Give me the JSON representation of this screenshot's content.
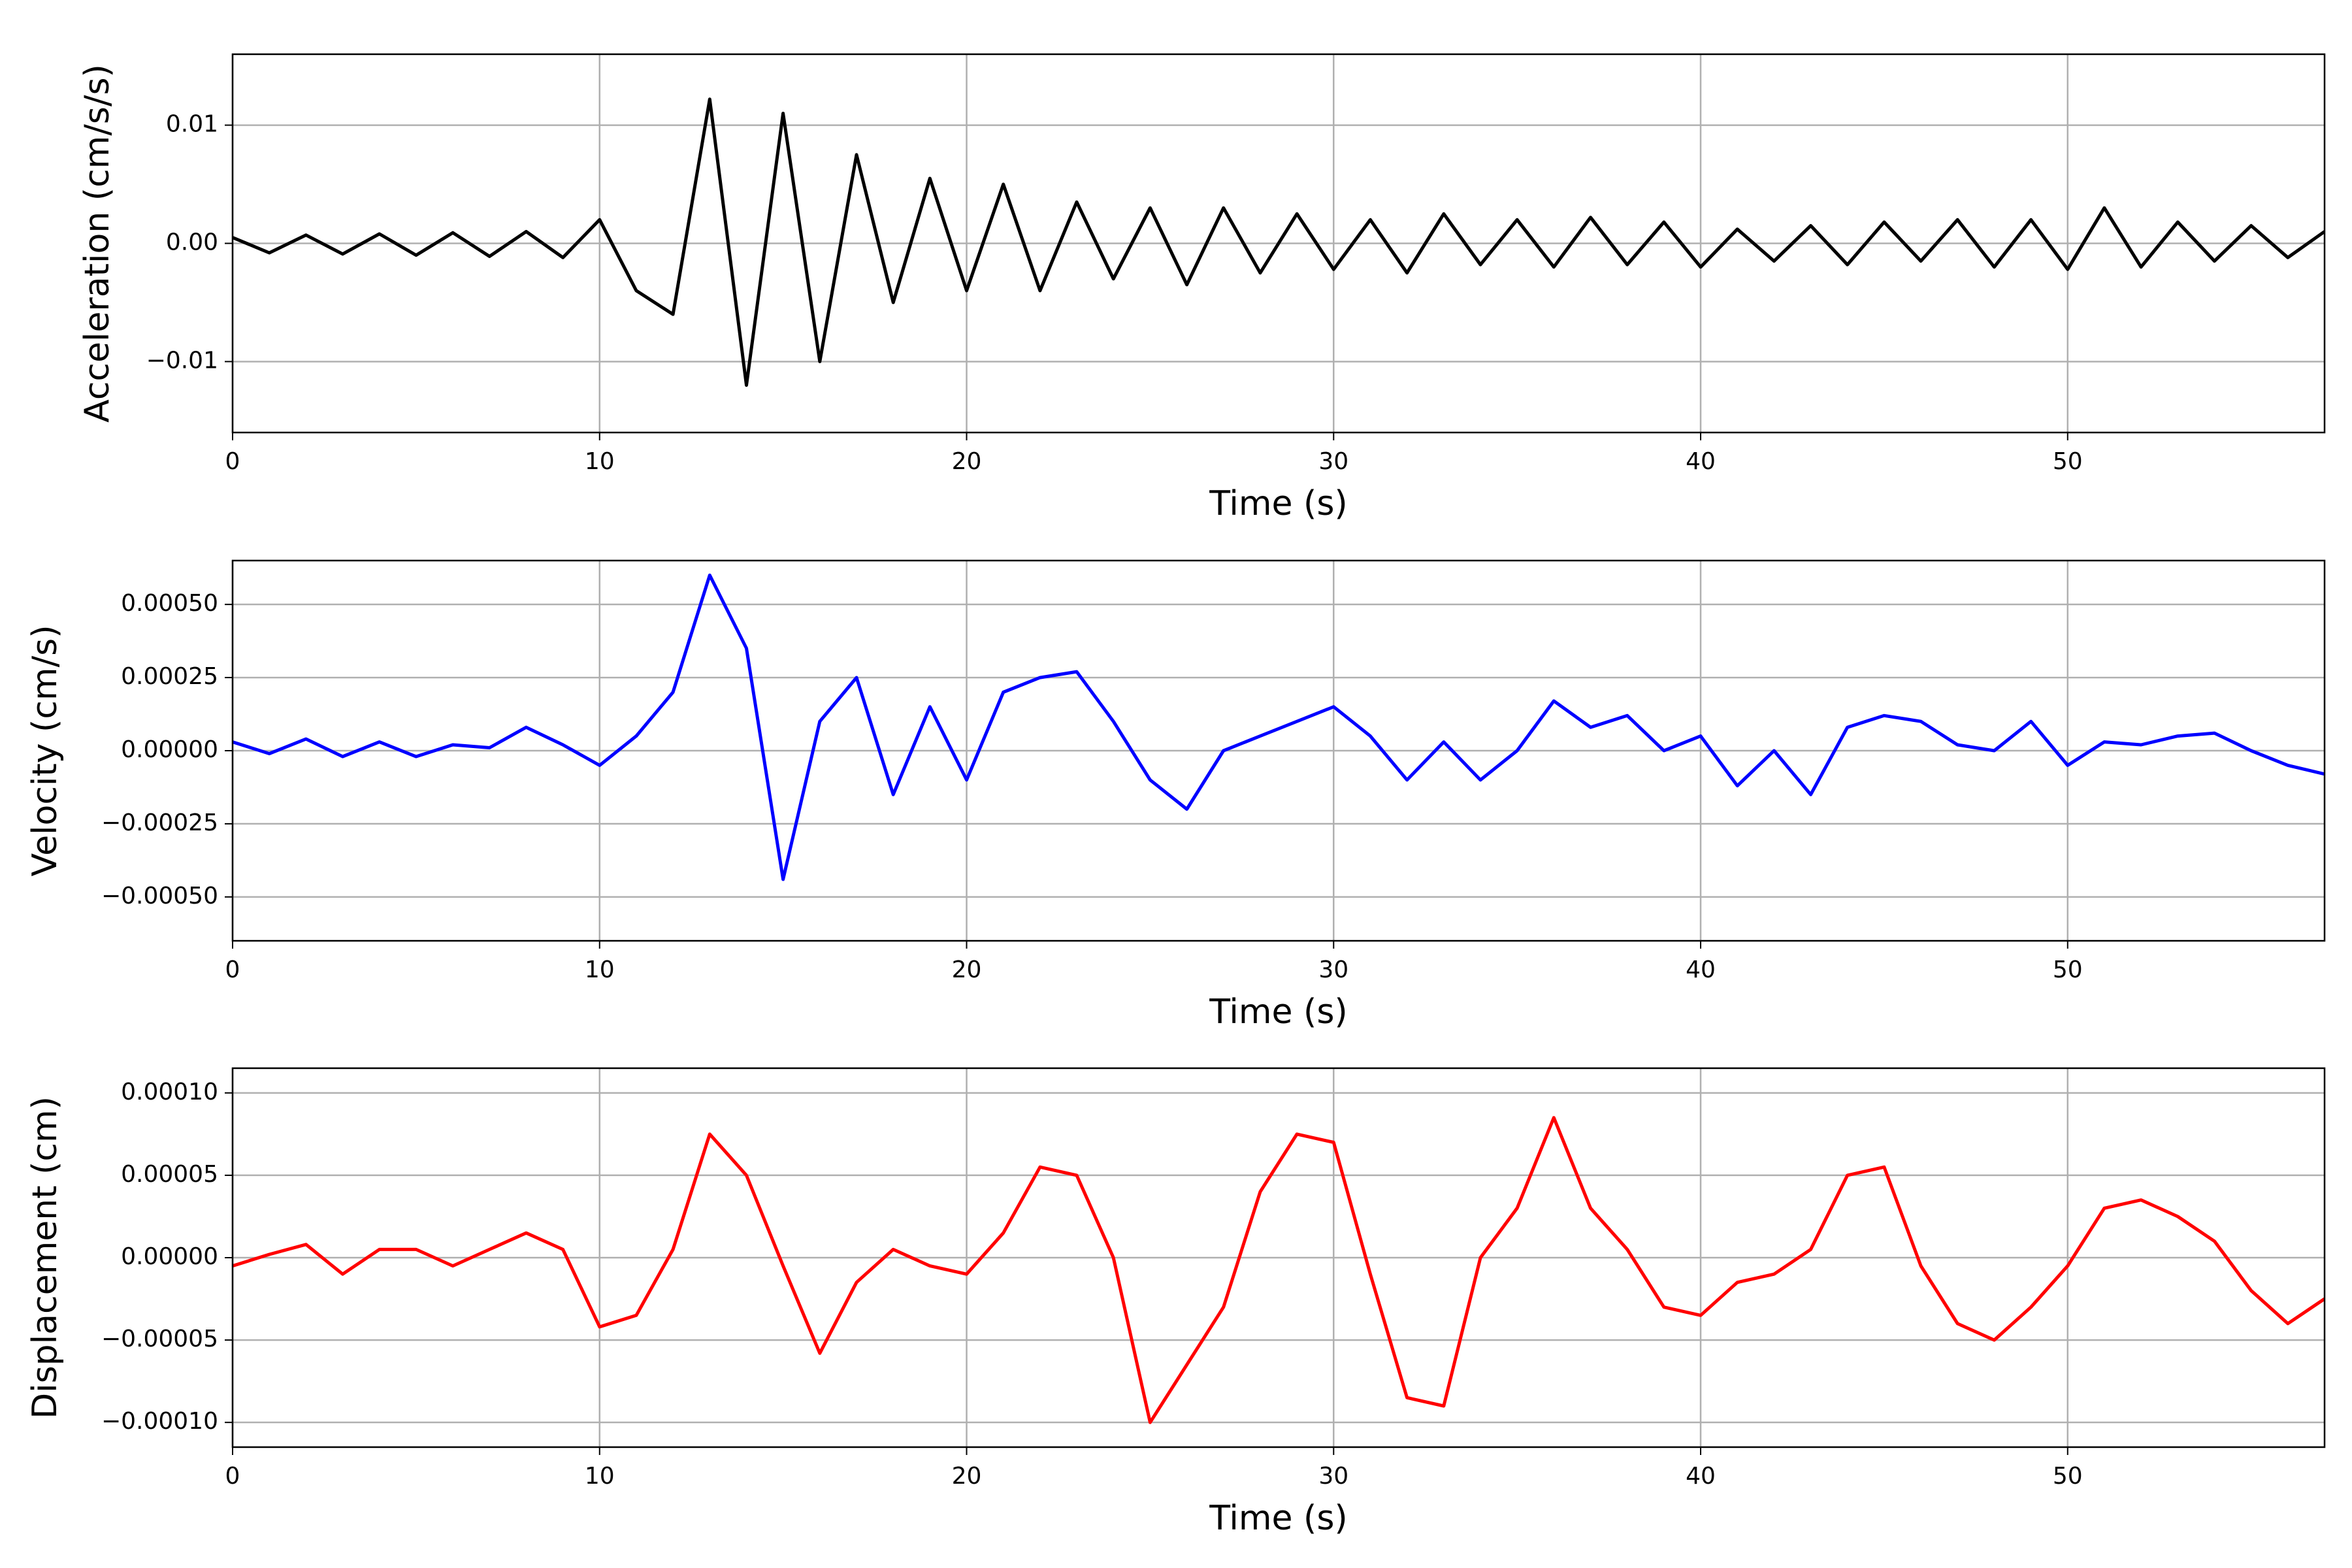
{
  "chart_data": [
    {
      "type": "line",
      "ylabel": "Acceleration (cm/s/s)",
      "xlabel": "Time (s)",
      "color": "#000000",
      "grid": true,
      "x": [
        0,
        1,
        2,
        3,
        4,
        5,
        6,
        7,
        8,
        9,
        10,
        11,
        12,
        13,
        14,
        15,
        16,
        17,
        18,
        19,
        20,
        21,
        22,
        23,
        24,
        25,
        26,
        27,
        28,
        29,
        30,
        31,
        32,
        33,
        34,
        35,
        36,
        37,
        38,
        39,
        40,
        41,
        42,
        43,
        44,
        45,
        46,
        47,
        48,
        49,
        50,
        51,
        52,
        53,
        54,
        55,
        56,
        57
      ],
      "values": [
        0.0005,
        -0.0008,
        0.0007,
        -0.0009,
        0.0008,
        -0.001,
        0.0009,
        -0.0011,
        0.001,
        -0.0012,
        0.002,
        -0.004,
        -0.006,
        0.0122,
        -0.012,
        0.011,
        -0.01,
        0.0075,
        -0.005,
        0.0055,
        -0.004,
        0.005,
        -0.004,
        0.0035,
        -0.003,
        0.003,
        -0.0035,
        0.003,
        -0.0025,
        0.0025,
        -0.0022,
        0.002,
        -0.0025,
        0.0025,
        -0.0018,
        0.002,
        -0.002,
        0.0022,
        -0.0018,
        0.0018,
        -0.002,
        0.0012,
        -0.0015,
        0.0015,
        -0.0018,
        0.0018,
        -0.0015,
        0.002,
        -0.002,
        0.002,
        -0.0022,
        0.003,
        -0.002,
        0.0018,
        -0.0015,
        0.0015,
        -0.0012,
        0.001
      ],
      "xlim": [
        0,
        57
      ],
      "xticks": [
        0,
        10,
        20,
        30,
        40,
        50
      ],
      "ylim": [
        -0.016,
        0.016
      ],
      "yticks": [
        {
          "value": -0.01,
          "label": "−0.01"
        },
        {
          "value": 0,
          "label": "0.00"
        },
        {
          "value": 0.01,
          "label": "0.01"
        }
      ]
    },
    {
      "type": "line",
      "ylabel": "Velocity (cm/s)",
      "xlabel": "Time (s)",
      "color": "#0000ff",
      "grid": true,
      "x": [
        0,
        1,
        2,
        3,
        4,
        5,
        6,
        7,
        8,
        9,
        10,
        11,
        12,
        13,
        14,
        15,
        16,
        17,
        18,
        19,
        20,
        21,
        22,
        23,
        24,
        25,
        26,
        27,
        28,
        29,
        30,
        31,
        32,
        33,
        34,
        35,
        36,
        37,
        38,
        39,
        40,
        41,
        42,
        43,
        44,
        45,
        46,
        47,
        48,
        49,
        50,
        51,
        52,
        53,
        54,
        55,
        56,
        57
      ],
      "values": [
        3e-05,
        -1e-05,
        4e-05,
        -2e-05,
        3e-05,
        -2e-05,
        2e-05,
        1e-05,
        8e-05,
        2e-05,
        -5e-05,
        5e-05,
        0.0002,
        0.0006,
        0.00035,
        -0.00044,
        0.0001,
        0.00025,
        -0.00015,
        0.00015,
        -0.0001,
        0.0002,
        0.00025,
        0.00027,
        0.0001,
        -0.0001,
        -0.0002,
        0,
        5e-05,
        0.0001,
        0.00015,
        5e-05,
        -0.0001,
        3e-05,
        -0.0001,
        0,
        0.00017,
        8e-05,
        0.00012,
        0,
        5e-05,
        -0.00012,
        0,
        -0.00015,
        8e-05,
        0.00012,
        0.0001,
        2e-05,
        0,
        0.0001,
        -5e-05,
        3e-05,
        2e-05,
        5e-05,
        6e-05,
        0,
        -5e-05,
        -8e-05
      ],
      "xlim": [
        0,
        57
      ],
      "xticks": [
        0,
        10,
        20,
        30,
        40,
        50
      ],
      "ylim": [
        -0.00065,
        0.00065
      ],
      "yticks": [
        {
          "value": -0.0005,
          "label": "−0.00050"
        },
        {
          "value": -0.00025,
          "label": "−0.00025"
        },
        {
          "value": 0,
          "label": "0.00000"
        },
        {
          "value": 0.00025,
          "label": "0.00025"
        },
        {
          "value": 0.0005,
          "label": "0.00050"
        }
      ]
    },
    {
      "type": "line",
      "ylabel": "Displacement (cm)",
      "xlabel": "Time (s)",
      "color": "#ff0000",
      "grid": true,
      "x": [
        0,
        1,
        2,
        3,
        4,
        5,
        6,
        7,
        8,
        9,
        10,
        11,
        12,
        13,
        14,
        15,
        16,
        17,
        18,
        19,
        20,
        21,
        22,
        23,
        24,
        25,
        26,
        27,
        28,
        29,
        30,
        31,
        32,
        33,
        34,
        35,
        36,
        37,
        38,
        39,
        40,
        41,
        42,
        43,
        44,
        45,
        46,
        47,
        48,
        49,
        50,
        51,
        52,
        53,
        54,
        55,
        56,
        57
      ],
      "values": [
        -5e-06,
        2e-06,
        8e-06,
        -1e-05,
        5e-06,
        5e-06,
        -5e-06,
        5e-06,
        1.5e-05,
        5e-06,
        -4.2e-05,
        -3.5e-05,
        5e-06,
        7.5e-05,
        5e-05,
        -5e-06,
        -5.8e-05,
        -1.5e-05,
        5e-06,
        -5e-06,
        -1e-05,
        1.5e-05,
        5.5e-05,
        5e-05,
        0,
        -0.0001,
        -6.5e-05,
        -3e-05,
        4e-05,
        7.5e-05,
        7e-05,
        -1e-05,
        -8.5e-05,
        -9e-05,
        0,
        3e-05,
        8.5e-05,
        3e-05,
        5e-06,
        -3e-05,
        -3.5e-05,
        -1.5e-05,
        -1e-05,
        5e-06,
        5e-05,
        5.5e-05,
        -5e-06,
        -4e-05,
        -5e-05,
        -3e-05,
        -5e-06,
        3e-05,
        3.5e-05,
        2.5e-05,
        1e-05,
        -2e-05,
        -4e-05,
        -2.5e-05
      ],
      "xlim": [
        0,
        57
      ],
      "xticks": [
        0,
        10,
        20,
        30,
        40,
        50
      ],
      "ylim": [
        -0.000115,
        0.000115
      ],
      "yticks": [
        {
          "value": -0.0001,
          "label": "−0.00010"
        },
        {
          "value": -5e-05,
          "label": "−0.00005"
        },
        {
          "value": 0,
          "label": "0.00000"
        },
        {
          "value": 5e-05,
          "label": "0.00005"
        },
        {
          "value": 0.0001,
          "label": "0.00010"
        }
      ]
    }
  ]
}
